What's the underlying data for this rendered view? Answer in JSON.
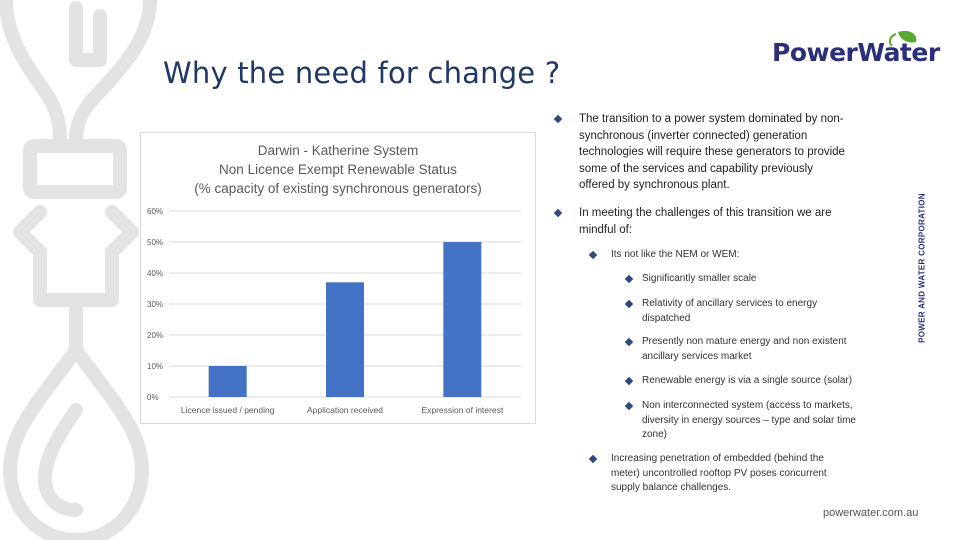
{
  "slide": {
    "title": "Why the need for change ?",
    "logo_text": "PowerWater",
    "side_text": "POWER AND WATER CORPORATION",
    "footer_url": "powerwater.com.au",
    "colors": {
      "title": "#1f3864",
      "bar": "#4472c4",
      "bullet": "#2e4a7c",
      "logo": "#2b2f7a",
      "leaf": "#5aa832"
    }
  },
  "bullets": {
    "b1": [
      "The transition to a power system dominated by non-",
      "synchronous (inverter connected) generation",
      "technologies will require these generators to provide",
      "some of the services and capability previously",
      "offered by synchronous plant."
    ],
    "b2": [
      "In meeting the challenges of this transition we are",
      "mindful of:"
    ],
    "b2_1": "Its not like the NEM or WEM:",
    "b2_1_1": "Significantly smaller scale",
    "b2_1_2": [
      "Relativity of ancillary services to energy",
      "dispatched"
    ],
    "b2_1_3": [
      "Presently non mature energy and non existent",
      "ancillary services market"
    ],
    "b2_1_4": "Renewable energy is via a single source (solar)",
    "b2_1_5": [
      "Non interconnected system (access to markets,",
      "diversity in energy sources – type and solar time",
      "zone)"
    ],
    "b2_2": [
      "Increasing penetration of embedded (behind the",
      "meter) uncontrolled rooftop PV poses concurrent",
      "supply balance challenges."
    ]
  },
  "chart_data": {
    "type": "bar",
    "title": [
      "Darwin - Katherine System",
      "Non Licence Exempt Renewable Status",
      "(% capacity of existing synchronous generators)"
    ],
    "categories": [
      "Licence issued / pending",
      "Application received",
      "Expression of interest"
    ],
    "values": [
      10,
      37,
      50
    ],
    "ylim": [
      0,
      60
    ],
    "yticks": [
      "0%",
      "10%",
      "20%",
      "30%",
      "40%",
      "50%",
      "60%"
    ],
    "grid": true,
    "legend": "none"
  }
}
